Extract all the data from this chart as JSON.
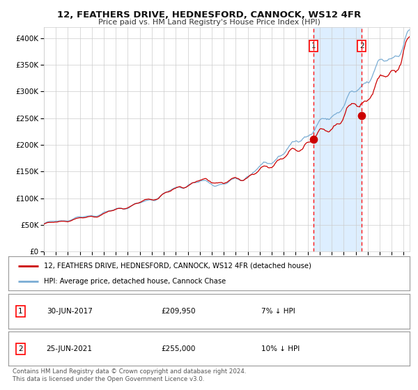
{
  "title": "12, FEATHERS DRIVE, HEDNESFORD, CANNOCK, WS12 4FR",
  "subtitle": "Price paid vs. HM Land Registry's House Price Index (HPI)",
  "legend_line1": "12, FEATHERS DRIVE, HEDNESFORD, CANNOCK, WS12 4FR (detached house)",
  "legend_line2": "HPI: Average price, detached house, Cannock Chase",
  "annotation1_date": "30-JUN-2017",
  "annotation1_price": "£209,950",
  "annotation1_note": "7% ↓ HPI",
  "annotation1_year": 2017.5,
  "annotation1_value": 209950,
  "annotation2_date": "25-JUN-2021",
  "annotation2_price": "£255,000",
  "annotation2_note": "10% ↓ HPI",
  "annotation2_year": 2021.5,
  "annotation2_value": 255000,
  "red_line_color": "#cc0000",
  "blue_line_color": "#7aadd4",
  "shaded_region_color": "#ddeeff",
  "dot_color": "#cc0000",
  "grid_color": "#cccccc",
  "background_color": "#ffffff",
  "footnote": "Contains HM Land Registry data © Crown copyright and database right 2024.\nThis data is licensed under the Open Government Licence v3.0.",
  "ylim": [
    0,
    420000
  ],
  "yticks": [
    0,
    50000,
    100000,
    150000,
    200000,
    250000,
    300000,
    350000,
    400000
  ],
  "ytick_labels": [
    "£0",
    "£50K",
    "£100K",
    "£150K",
    "£200K",
    "£250K",
    "£300K",
    "£350K",
    "£400K"
  ],
  "start_year": 1995,
  "end_year": 2025
}
